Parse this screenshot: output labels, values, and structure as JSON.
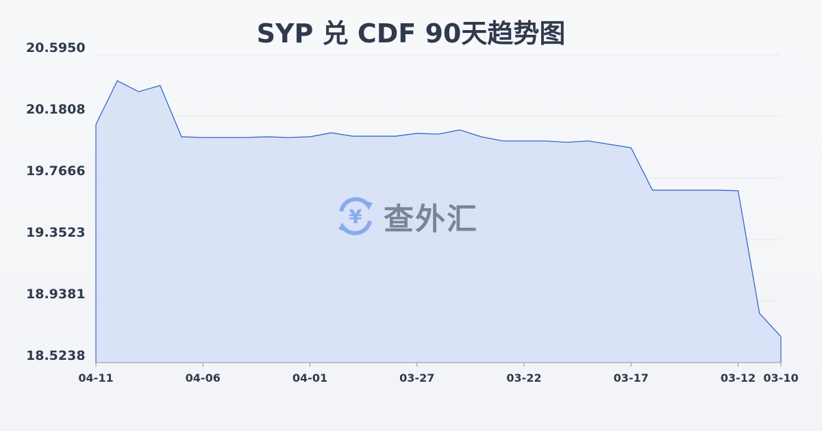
{
  "chart_data": {
    "type": "area",
    "title": "SYP 兑 CDF 90天趋势图",
    "xlabel": "",
    "ylabel": "",
    "x": [
      "04-11",
      "04-10",
      "04-09",
      "04-08",
      "04-07",
      "04-06",
      "04-05",
      "04-04",
      "04-03",
      "04-02",
      "04-01",
      "03-31",
      "03-30",
      "03-29",
      "03-28",
      "03-27",
      "03-26",
      "03-25",
      "03-24",
      "03-23",
      "03-22",
      "03-21",
      "03-20",
      "03-19",
      "03-18",
      "03-17",
      "03-16",
      "03-15",
      "03-14",
      "03-13",
      "03-12",
      "03-11",
      "03-10"
    ],
    "values": [
      20.126,
      20.42,
      20.346,
      20.388,
      20.043,
      20.038,
      20.038,
      20.038,
      20.043,
      20.038,
      20.043,
      20.07,
      20.047,
      20.047,
      20.047,
      20.066,
      20.061,
      20.089,
      20.043,
      20.015,
      20.015,
      20.015,
      20.006,
      20.015,
      19.992,
      19.969,
      19.684,
      19.684,
      19.684,
      19.684,
      19.68,
      18.855,
      18.699
    ],
    "x_tick_labels": [
      "04-11",
      "04-06",
      "04-01",
      "03-27",
      "03-22",
      "03-17",
      "03-12",
      "03-10"
    ],
    "y_tick_labels": [
      "20.5950",
      "20.1808",
      "19.7666",
      "19.3523",
      "18.9381",
      "18.5238"
    ],
    "ylim": [
      18.5238,
      20.595
    ],
    "grid": true,
    "line_color": "#3366cc",
    "fill_color": "#d6e0f5"
  },
  "watermark": {
    "text": "查外汇",
    "icon": "yen-exchange-icon"
  }
}
